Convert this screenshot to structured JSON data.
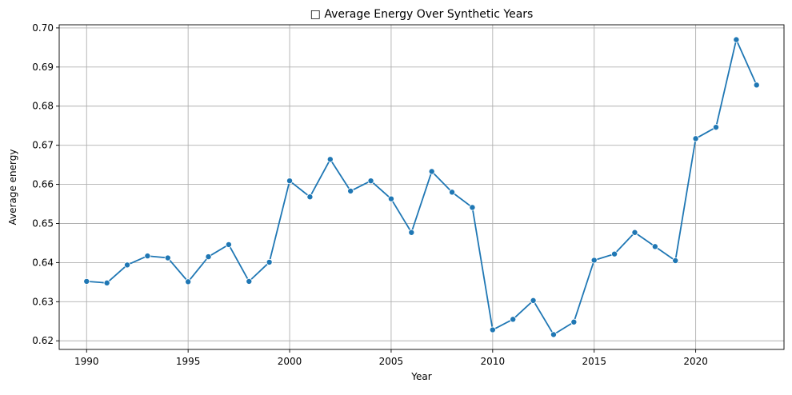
{
  "chart_data": {
    "type": "line",
    "title": "□ Average Energy Over Synthetic Years",
    "xlabel": "Year",
    "ylabel": "Average energy",
    "xlim": [
      1988.65,
      2024.35
    ],
    "ylim": [
      0.6178,
      0.7008
    ],
    "x_ticks": [
      1990,
      1995,
      2000,
      2005,
      2010,
      2015,
      2020
    ],
    "y_ticks": [
      0.62,
      0.63,
      0.64,
      0.65,
      0.66,
      0.67,
      0.68,
      0.69,
      0.7
    ],
    "grid": true,
    "series": [
      {
        "color": "#1f77b4",
        "marker": "circle",
        "x": [
          1990,
          1991,
          1992,
          1993,
          1994,
          1995,
          1996,
          1997,
          1998,
          1999,
          2000,
          2001,
          2002,
          2003,
          2004,
          2005,
          2006,
          2007,
          2008,
          2009,
          2010,
          2011,
          2012,
          2013,
          2014,
          2015,
          2016,
          2017,
          2018,
          2019,
          2020,
          2021,
          2022,
          2023
        ],
        "values": [
          0.6352,
          0.6348,
          0.6394,
          0.6417,
          0.6412,
          0.6351,
          0.6415,
          0.6446,
          0.6352,
          0.6401,
          0.6609,
          0.6568,
          0.6664,
          0.6583,
          0.6609,
          0.6563,
          0.6477,
          0.6633,
          0.658,
          0.6541,
          0.6228,
          0.6255,
          0.6303,
          0.6216,
          0.6248,
          0.6406,
          0.6422,
          0.6477,
          0.6441,
          0.6405,
          0.6717,
          0.6746,
          0.697,
          0.6854
        ]
      }
    ]
  }
}
